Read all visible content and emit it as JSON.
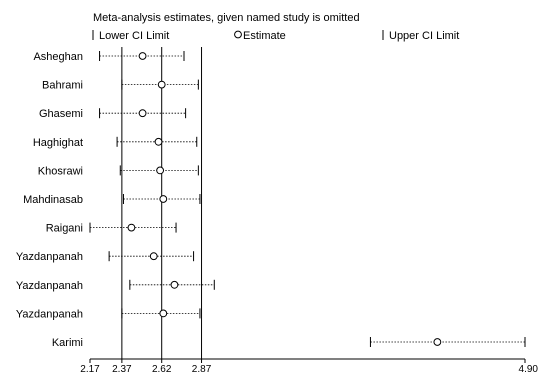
{
  "chart_data": {
    "type": "forest",
    "title": "Meta-analysis estimates, given named study is omitted",
    "legend": {
      "lower": "Lower CI Limit",
      "estimate": "Estimate",
      "upper": "Upper CI Limit"
    },
    "xlim": [
      2.17,
      4.9
    ],
    "x_ticks": [
      {
        "value": 2.17,
        "label": "2.17"
      },
      {
        "value": 2.37,
        "label": "2.37"
      },
      {
        "value": 2.62,
        "label": "2.62"
      },
      {
        "value": 2.87,
        "label": "2.87"
      },
      {
        "value": 4.9,
        "label": "4.90"
      }
    ],
    "reference_lines": [
      2.37,
      2.62,
      2.87
    ],
    "studies": [
      {
        "name": "Asheghan",
        "lower": 2.23,
        "estimate": 2.5,
        "upper": 2.76
      },
      {
        "name": "Bahrami",
        "lower": 2.37,
        "estimate": 2.62,
        "upper": 2.85
      },
      {
        "name": "Ghasemi",
        "lower": 2.23,
        "estimate": 2.5,
        "upper": 2.77
      },
      {
        "name": "Haghighat",
        "lower": 2.34,
        "estimate": 2.6,
        "upper": 2.84
      },
      {
        "name": "Khosrawi",
        "lower": 2.36,
        "estimate": 2.61,
        "upper": 2.85
      },
      {
        "name": "Mahdinasab",
        "lower": 2.38,
        "estimate": 2.63,
        "upper": 2.86
      },
      {
        "name": "Raigani",
        "lower": 2.17,
        "estimate": 2.43,
        "upper": 2.71
      },
      {
        "name": "Yazdanpanah",
        "lower": 2.29,
        "estimate": 2.57,
        "upper": 2.82
      },
      {
        "name": "Yazdanpanah",
        "lower": 2.42,
        "estimate": 2.7,
        "upper": 2.95
      },
      {
        "name": "Yazdanpanah",
        "lower": 2.37,
        "estimate": 2.63,
        "upper": 2.86
      },
      {
        "name": "Karimi",
        "lower": 3.93,
        "estimate": 4.35,
        "upper": 4.9
      }
    ]
  }
}
